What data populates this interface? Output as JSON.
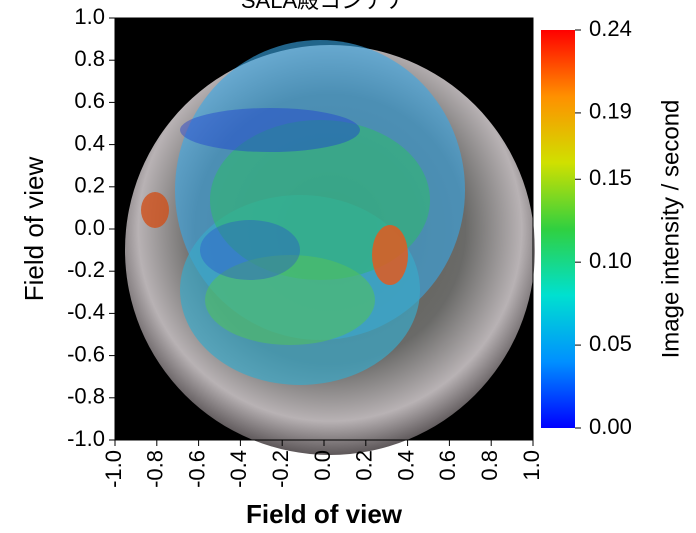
{
  "chart_data": {
    "type": "heatmap",
    "title": "SALA殿コンテナ",
    "xlabel": "Field of view",
    "ylabel": "Field of view",
    "colorbar_label": "Image intensity / second",
    "xlim": [
      -1,
      1
    ],
    "ylim": [
      -1,
      1
    ],
    "zlim": [
      0,
      0.24
    ],
    "xticks": [
      {
        "value": -1,
        "label": "-1.0"
      },
      -0.8,
      -0.6,
      -0.4,
      -0.2,
      {
        "value": 0,
        "label": "0.0"
      },
      0.2,
      0.4,
      0.6,
      0.8,
      {
        "value": 1,
        "label": "1.0"
      }
    ],
    "yticks": [
      {
        "value": -1,
        "label": "-1.0"
      },
      -0.8,
      -0.6,
      -0.4,
      -0.2,
      {
        "value": 0,
        "label": "0.0"
      },
      0.2,
      0.4,
      0.6,
      0.8,
      {
        "value": 1,
        "label": "1.0"
      }
    ],
    "zticks": [
      {
        "value": 0,
        "label": "0.00"
      },
      0.05,
      {
        "value": 0.1,
        "label": "0.10"
      },
      0.15,
      0.19,
      0.24
    ],
    "colorscale": [
      "#0000ff",
      "#0090ff",
      "#00e0d0",
      "#30d040",
      "#d0e000",
      "#ff9000",
      "#ff0000"
    ]
  }
}
